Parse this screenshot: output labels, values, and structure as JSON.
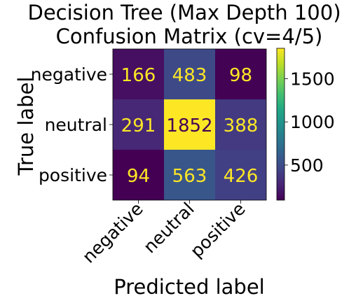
{
  "chart_data": {
    "type": "heatmap",
    "title_lines": [
      "Decision Tree (Max Depth 100)",
      "Confusion Matrix (cv=4/5)"
    ],
    "xlabel": "Predicted label",
    "ylabel": "True label",
    "x_categories": [
      "negative",
      "neutral",
      "positive"
    ],
    "y_categories": [
      "negative",
      "neutral",
      "positive"
    ],
    "matrix": [
      [
        166,
        483,
        98
      ],
      [
        291,
        1852,
        388
      ],
      [
        94,
        563,
        426
      ]
    ],
    "colormap": "viridis",
    "color_range": [
      94,
      1852
    ],
    "colorbar_ticks": [
      500,
      1000,
      1500
    ],
    "text_color_on_dark": "#fde725",
    "text_color_on_light": "#440154"
  }
}
